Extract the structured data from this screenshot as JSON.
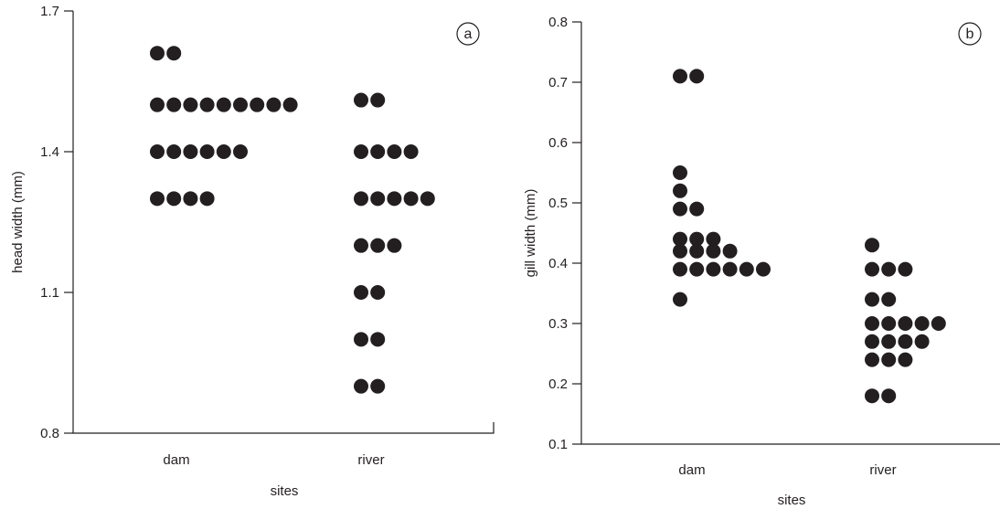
{
  "chart_data": [
    {
      "type": "scatter",
      "panel_label": "a",
      "xlabel": "sites",
      "ylabel": "head width (mm)",
      "ylim": [
        0.8,
        1.7
      ],
      "yticks": [
        "0.8",
        "1.1",
        "1.4",
        "1.7"
      ],
      "categories": [
        "dam",
        "river"
      ],
      "marker_color": "#231f20",
      "series": [
        {
          "category": "dam",
          "rows": [
            {
              "y": 1.61,
              "count": 2
            },
            {
              "y": 1.5,
              "count": 9
            },
            {
              "y": 1.4,
              "count": 6
            },
            {
              "y": 1.3,
              "count": 4
            }
          ]
        },
        {
          "category": "river",
          "rows": [
            {
              "y": 1.51,
              "count": 2
            },
            {
              "y": 1.4,
              "count": 4
            },
            {
              "y": 1.3,
              "count": 5
            },
            {
              "y": 1.2,
              "count": 3
            },
            {
              "y": 1.1,
              "count": 2
            },
            {
              "y": 1.0,
              "count": 2
            },
            {
              "y": 0.9,
              "count": 2
            }
          ]
        }
      ]
    },
    {
      "type": "scatter",
      "panel_label": "b",
      "xlabel": "sites",
      "ylabel": "gill width (mm)",
      "ylim": [
        0.1,
        0.8
      ],
      "yticks": [
        "0.1",
        "0.2",
        "0.3",
        "0.4",
        "0.5",
        "0.6",
        "0.7",
        "0.8"
      ],
      "categories": [
        "dam",
        "river"
      ],
      "marker_color": "#231f20",
      "series": [
        {
          "category": "dam",
          "rows": [
            {
              "y": 0.71,
              "count": 2
            },
            {
              "y": 0.55,
              "count": 1
            },
            {
              "y": 0.52,
              "count": 1
            },
            {
              "y": 0.49,
              "count": 2
            },
            {
              "y": 0.44,
              "count": 3
            },
            {
              "y": 0.42,
              "count": 4
            },
            {
              "y": 0.39,
              "count": 6
            },
            {
              "y": 0.34,
              "count": 1
            }
          ]
        },
        {
          "category": "river",
          "rows": [
            {
              "y": 0.43,
              "count": 1
            },
            {
              "y": 0.39,
              "count": 3
            },
            {
              "y": 0.34,
              "count": 2
            },
            {
              "y": 0.3,
              "count": 5
            },
            {
              "y": 0.27,
              "count": 4
            },
            {
              "y": 0.24,
              "count": 3
            },
            {
              "y": 0.18,
              "count": 2
            }
          ]
        }
      ]
    }
  ]
}
